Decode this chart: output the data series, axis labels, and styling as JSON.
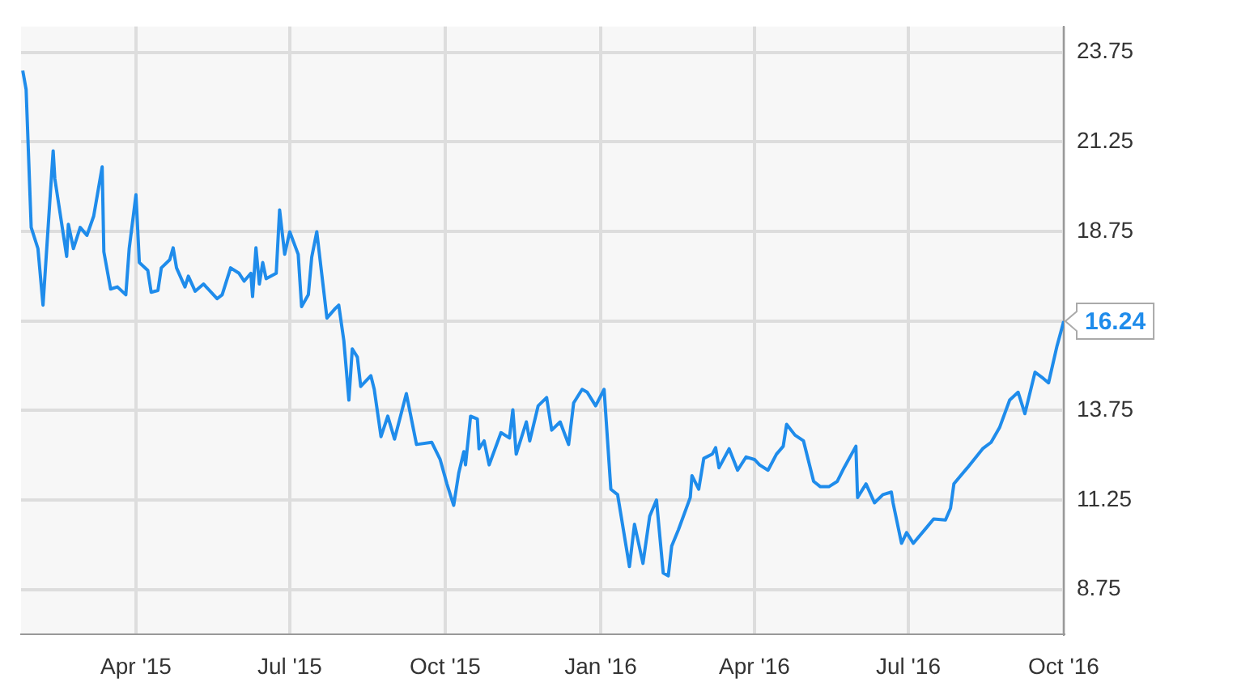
{
  "chart_data": {
    "type": "line",
    "x": [
      "2015-01-24",
      "2015-01-26",
      "2015-01-29",
      "2015-02-02",
      "2015-02-05",
      "2015-02-11",
      "2015-02-12",
      "2015-02-19",
      "2015-02-20",
      "2015-02-23",
      "2015-02-27",
      "2015-03-03",
      "2015-03-07",
      "2015-03-12",
      "2015-03-13",
      "2015-03-17",
      "2015-03-21",
      "2015-03-26",
      "2015-03-28",
      "2015-04-01",
      "2015-04-03",
      "2015-04-08",
      "2015-04-10",
      "2015-04-14",
      "2015-04-16",
      "2015-04-21",
      "2015-04-23",
      "2015-04-25",
      "2015-04-30",
      "2015-05-02",
      "2015-05-06",
      "2015-05-11",
      "2015-05-19",
      "2015-05-22",
      "2015-05-27",
      "2015-06-01",
      "2015-06-04",
      "2015-06-08",
      "2015-06-09",
      "2015-06-11",
      "2015-06-13",
      "2015-06-15",
      "2015-06-17",
      "2015-06-23",
      "2015-06-25",
      "2015-06-28",
      "2015-07-01",
      "2015-07-06",
      "2015-07-08",
      "2015-07-12",
      "2015-07-14",
      "2015-07-17",
      "2015-07-23",
      "2015-07-28",
      "2015-07-30",
      "2015-08-02",
      "2015-08-05",
      "2015-08-07",
      "2015-08-10",
      "2015-08-12",
      "2015-08-18",
      "2015-08-20",
      "2015-08-24",
      "2015-08-28",
      "2015-09-01",
      "2015-09-08",
      "2015-09-14",
      "2015-09-23",
      "2015-09-28",
      "2015-10-02",
      "2015-10-06",
      "2015-10-09",
      "2015-10-12",
      "2015-10-13",
      "2015-10-16",
      "2015-10-20",
      "2015-10-21",
      "2015-10-24",
      "2015-10-27",
      "2015-11-03",
      "2015-11-08",
      "2015-11-10",
      "2015-11-12",
      "2015-11-18",
      "2015-11-20",
      "2015-11-25",
      "2015-11-30",
      "2015-12-03",
      "2015-12-08",
      "2015-12-13",
      "2015-12-16",
      "2015-12-21",
      "2015-12-24",
      "2015-12-29",
      "2016-01-03",
      "2016-01-07",
      "2016-01-11",
      "2016-01-18",
      "2016-01-21",
      "2016-01-26",
      "2016-01-30",
      "2016-02-03",
      "2016-02-07",
      "2016-02-10",
      "2016-02-12",
      "2016-02-16",
      "2016-02-23",
      "2016-02-24",
      "2016-02-28",
      "2016-03-02",
      "2016-03-07",
      "2016-03-09",
      "2016-03-11",
      "2016-03-17",
      "2016-03-22",
      "2016-03-27",
      "2016-04-01",
      "2016-04-04",
      "2016-04-09",
      "2016-04-14",
      "2016-04-18",
      "2016-04-20",
      "2016-04-25",
      "2016-04-30",
      "2016-05-06",
      "2016-05-10",
      "2016-05-15",
      "2016-05-20",
      "2016-05-24",
      "2016-05-31",
      "2016-06-01",
      "2016-06-06",
      "2016-06-11",
      "2016-06-16",
      "2016-06-21",
      "2016-06-22",
      "2016-06-27",
      "2016-06-30",
      "2016-07-04",
      "2016-07-12",
      "2016-07-16",
      "2016-07-23",
      "2016-07-26",
      "2016-07-28",
      "2016-08-01",
      "2016-08-05",
      "2016-08-14",
      "2016-08-19",
      "2016-08-24",
      "2016-08-30",
      "2016-09-04",
      "2016-09-08",
      "2016-09-14",
      "2016-09-19",
      "2016-09-22",
      "2016-09-27",
      "2016-10-01"
    ],
    "series": [
      {
        "color": "#1f8ceb",
        "values": [
          23.24,
          22.71,
          18.86,
          18.27,
          16.69,
          21.0,
          20.22,
          18.05,
          18.95,
          18.27,
          18.86,
          18.64,
          19.18,
          20.55,
          18.18,
          17.14,
          17.2,
          16.98,
          18.27,
          19.77,
          17.88,
          17.66,
          17.05,
          17.1,
          17.73,
          17.96,
          18.29,
          17.73,
          17.2,
          17.5,
          17.08,
          17.28,
          16.87,
          16.98,
          17.73,
          17.58,
          17.36,
          17.58,
          16.93,
          18.29,
          17.28,
          17.88,
          17.43,
          17.58,
          19.35,
          18.11,
          18.74,
          18.11,
          16.65,
          16.98,
          18.03,
          18.74,
          16.33,
          16.6,
          16.69,
          15.7,
          14.04,
          15.47,
          15.24,
          14.42,
          14.72,
          14.34,
          13.02,
          13.59,
          12.95,
          14.22,
          12.8,
          12.86,
          12.38,
          11.7,
          11.1,
          12.0,
          12.6,
          12.23,
          13.59,
          13.51,
          12.68,
          12.9,
          12.23,
          13.13,
          12.98,
          13.77,
          12.53,
          13.43,
          12.9,
          13.88,
          14.11,
          13.2,
          13.43,
          12.8,
          13.96,
          14.34,
          14.26,
          13.88,
          14.34,
          11.55,
          11.4,
          9.39,
          10.57,
          9.48,
          10.8,
          11.25,
          9.21,
          9.13,
          9.96,
          10.42,
          11.32,
          11.93,
          11.55,
          12.41,
          12.53,
          12.71,
          12.15,
          12.68,
          12.08,
          12.45,
          12.38,
          12.23,
          12.08,
          12.53,
          12.75,
          13.36,
          13.06,
          12.9,
          11.77,
          11.62,
          11.62,
          11.77,
          12.15,
          12.75,
          11.32,
          11.7,
          11.17,
          11.4,
          11.47,
          11.17,
          10.04,
          10.34,
          10.04,
          10.49,
          10.72,
          10.69,
          11.02,
          11.7,
          11.93,
          12.15,
          12.68,
          12.86,
          13.27,
          14.04,
          14.26,
          13.66,
          14.82,
          14.64,
          14.52,
          15.55,
          16.24
        ]
      }
    ],
    "xlim": [
      "2015-01-23",
      "2016-10-01"
    ],
    "xticks": [
      {
        "value": "2015-04-01",
        "label": "Apr '15"
      },
      {
        "value": "2015-07-01",
        "label": "Jul '15"
      },
      {
        "value": "2015-10-01",
        "label": "Oct '15"
      },
      {
        "value": "2016-01-01",
        "label": "Jan '16"
      },
      {
        "value": "2016-04-01",
        "label": "Apr '16"
      },
      {
        "value": "2016-07-01",
        "label": "Jul '16"
      },
      {
        "value": "2016-10-01",
        "label": "Oct '16"
      }
    ],
    "ylim": [
      7.5,
      24.47
    ],
    "yticks": [
      8.75,
      11.25,
      13.75,
      {
        "value": 16.25,
        "label": null
      },
      18.75,
      21.25,
      23.75
    ],
    "annotations": [
      {
        "text": "16.24",
        "x": "2016-10-01",
        "y": 16.24
      }
    ],
    "grid": true,
    "legend": false,
    "marker": "none",
    "line_style": "solid"
  }
}
